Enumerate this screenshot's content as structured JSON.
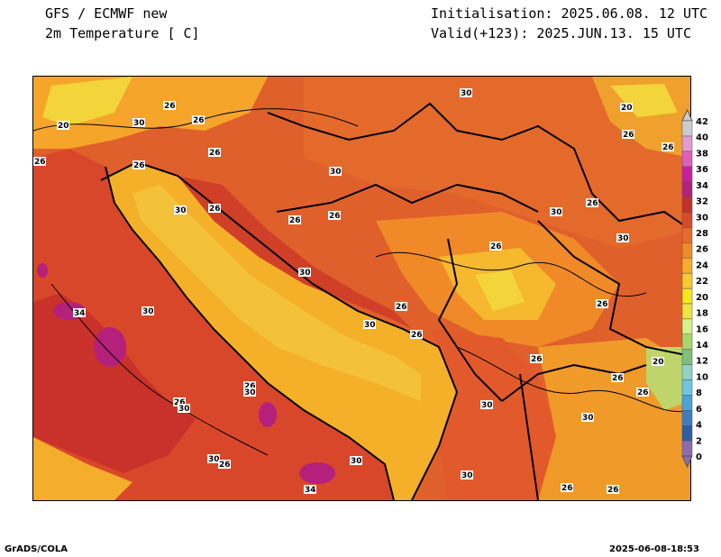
{
  "header": {
    "model": "GFS / ECMWF new",
    "field": "2m Temperature [ C]",
    "initialisation": "Initialisation: 2025.06.08. 12 UTC",
    "valid": "Valid(+123): 2025.JUN.13. 15 UTC"
  },
  "footer": {
    "left": "GrADS/COLA",
    "right": "2025-06-08-18:53"
  },
  "colorbar": {
    "unit": "C",
    "levels": [
      "0",
      "2",
      "4",
      "6",
      "8",
      "10",
      "12",
      "14",
      "16",
      "18",
      "20",
      "22",
      "24",
      "26",
      "28",
      "30",
      "32",
      "34",
      "36",
      "38",
      "40",
      "42"
    ],
    "colors": [
      "#8c6bb1",
      "#2c5fa8",
      "#3a7ec4",
      "#4aa3d8",
      "#6cc6e6",
      "#8fd3c8",
      "#7fbf7b",
      "#a6d96a",
      "#d9ef8b",
      "#f0e442",
      "#f7e61c",
      "#f9c930",
      "#f7ad2c",
      "#f08a28",
      "#e8692a",
      "#d84a2a",
      "#c5302a",
      "#b4207a",
      "#c81ea0",
      "#de5fb9",
      "#e69ad2",
      "#cccccc"
    ]
  },
  "contour_labels": [
    "20",
    "26",
    "30",
    "34"
  ]
}
